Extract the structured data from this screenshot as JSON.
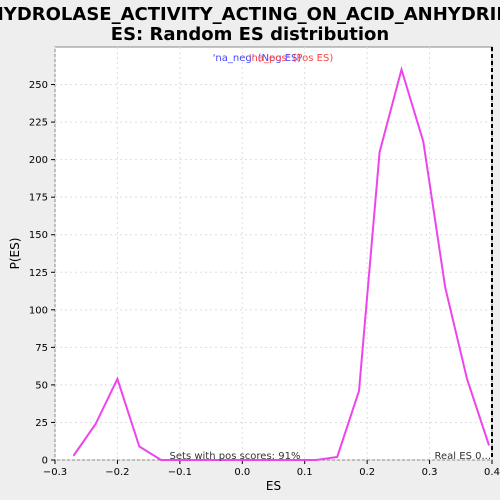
{
  "chart_data": {
    "type": "line",
    "title_line1": "HYDROLASE_ACTIVITY_ACTING_ON_ACID_ANHYDRID",
    "title_line2": "ES: Random ES distribution",
    "xlabel": "ES",
    "ylabel": "P(ES)",
    "xlim": [
      -0.3,
      0.4
    ],
    "ylim": [
      0,
      275
    ],
    "x_ticks": [
      -0.3,
      -0.2,
      -0.1,
      0.0,
      0.1,
      0.2,
      0.3,
      0.4
    ],
    "x_tick_labels": [
      "−0.3",
      "−0.2",
      "−0.1",
      "0.0",
      "0.1",
      "0.2",
      "0.3",
      "0.4"
    ],
    "y_ticks": [
      0,
      25,
      50,
      75,
      100,
      125,
      150,
      175,
      200,
      225,
      250
    ],
    "y_tick_labels": [
      "0",
      "25",
      "50",
      "75",
      "100",
      "125",
      "150",
      "175",
      "200",
      "225",
      "250"
    ],
    "grid": true,
    "legend": [
      {
        "label": "'na_neg' (Neg ES)",
        "color": "#4444ff"
      },
      {
        "label": "'na_pos' (Pos ES)",
        "color": "#ff4444"
      }
    ],
    "series": [
      {
        "color": "#ee44ee",
        "x": [
          -0.27,
          -0.235,
          -0.2,
          -0.165,
          -0.13,
          -0.095,
          0.0,
          0.085,
          0.118,
          0.152,
          0.187,
          0.22,
          0.255,
          0.29,
          0.325,
          0.36,
          0.395
        ],
        "y": [
          3,
          24,
          54,
          9,
          0,
          0,
          0,
          0,
          0,
          2,
          46,
          205,
          260,
          212,
          115,
          54,
          10
        ]
      }
    ],
    "real_es": {
      "x": 0.4,
      "label": "Real ES 0..."
    },
    "annotation": "Sets with pos scores: 91%"
  }
}
